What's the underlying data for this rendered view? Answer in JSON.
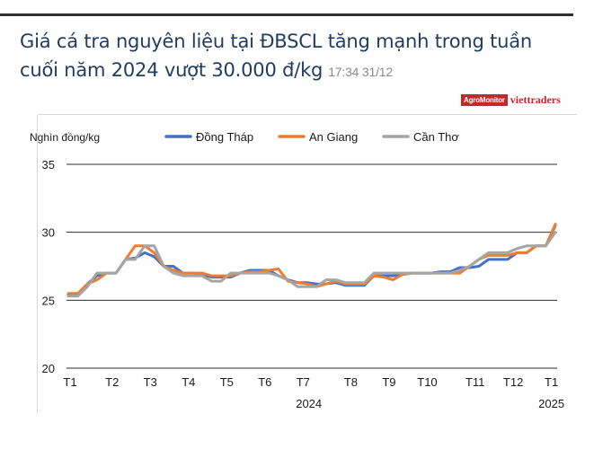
{
  "header": {
    "title": "Giá cá tra nguyên liệu tại ĐBSCL tăng mạnh trong tuần cuối năm 2024 vượt 30.000 đ/kg",
    "timestamp": "17:34 31/12"
  },
  "logo": {
    "brand_red": "AgroMonitor",
    "brand_text": "viettraders",
    "color": "#c9252c"
  },
  "chart_data": {
    "type": "line",
    "title": "",
    "ylabel": "Nghìn đồng/kg",
    "xlabel": "",
    "ylim": [
      20,
      35
    ],
    "yticks": [
      20,
      25,
      30,
      35
    ],
    "grid": true,
    "legend_position": "top",
    "x_ticks": [
      {
        "label": "T1",
        "pos": 0
      },
      {
        "label": "T2",
        "pos": 4.4
      },
      {
        "label": "T3",
        "pos": 8.4
      },
      {
        "label": "T4",
        "pos": 12.4
      },
      {
        "label": "T5",
        "pos": 16.4
      },
      {
        "label": "T6",
        "pos": 20.4
      },
      {
        "label": "T7",
        "pos": 24.4
      },
      {
        "label": "T8",
        "pos": 29.4
      },
      {
        "label": "T9",
        "pos": 33.4
      },
      {
        "label": "T10",
        "pos": 37.4
      },
      {
        "label": "T11",
        "pos": 42.4
      },
      {
        "label": "T12",
        "pos": 46.4
      },
      {
        "label": "T1",
        "pos": 50.4
      }
    ],
    "year_labels": [
      {
        "label": "2024",
        "pos": 25
      },
      {
        "label": "2025",
        "pos": 50.4
      }
    ],
    "series": [
      {
        "name": "Đồng Tháp",
        "color": "#4472c4",
        "values": [
          25.4,
          25.4,
          26.2,
          26.8,
          27.0,
          27.0,
          28.0,
          28.1,
          28.5,
          28.2,
          27.5,
          27.5,
          27.0,
          27.0,
          26.9,
          26.7,
          26.7,
          26.7,
          27.0,
          27.2,
          27.2,
          27.2,
          26.8,
          26.5,
          26.3,
          26.3,
          26.2,
          26.2,
          26.3,
          26.1,
          26.1,
          26.1,
          26.8,
          26.8,
          26.8,
          26.9,
          27.0,
          27.0,
          27.0,
          27.1,
          27.1,
          27.4,
          27.4,
          27.5,
          28.0,
          28.0,
          28.0,
          28.5,
          28.5,
          29.0,
          29.0,
          30.5
        ]
      },
      {
        "name": "An Giang",
        "color": "#ed7d31",
        "values": [
          25.5,
          25.5,
          26.2,
          26.5,
          27.0,
          27.0,
          28.0,
          29.0,
          29.0,
          28.5,
          27.5,
          27.2,
          27.0,
          27.0,
          27.0,
          26.8,
          26.8,
          26.8,
          27.0,
          27.1,
          27.1,
          27.2,
          27.3,
          26.4,
          26.3,
          26.2,
          26.0,
          26.2,
          26.4,
          26.2,
          26.2,
          26.2,
          26.8,
          26.7,
          26.5,
          26.9,
          27.0,
          27.0,
          27.0,
          27.0,
          27.0,
          27.0,
          27.5,
          28.0,
          28.3,
          28.3,
          28.3,
          28.5,
          28.5,
          29.0,
          29.0,
          30.6
        ]
      },
      {
        "name": "Cần Thơ",
        "color": "#a5a5a5",
        "values": [
          25.3,
          25.3,
          26.0,
          27.0,
          27.0,
          27.0,
          28.0,
          28.0,
          29.0,
          29.0,
          27.5,
          27.0,
          26.8,
          26.8,
          26.8,
          26.4,
          26.4,
          27.0,
          27.0,
          27.0,
          27.0,
          27.0,
          26.8,
          26.5,
          26.0,
          26.0,
          26.0,
          26.5,
          26.5,
          26.3,
          26.3,
          26.3,
          27.0,
          27.0,
          27.0,
          27.0,
          27.0,
          27.0,
          27.0,
          27.0,
          27.0,
          27.2,
          27.5,
          28.0,
          28.5,
          28.5,
          28.5,
          28.8,
          29.0,
          29.0,
          29.0,
          30.0
        ]
      }
    ]
  }
}
